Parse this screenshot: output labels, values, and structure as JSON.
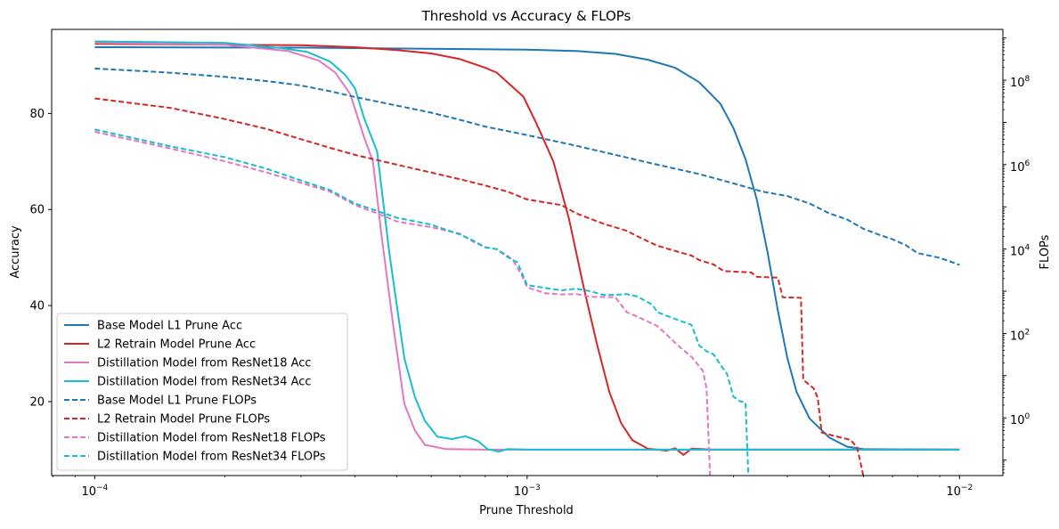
{
  "chart_data": {
    "type": "line",
    "title": "Threshold vs Accuracy & FLOPs",
    "xlabel": "Prune Threshold",
    "ylabel": "Accuracy",
    "y2label": "FLOPs",
    "xscale": "log",
    "xlim": [
      7.95e-05,
      0.0126
    ],
    "ylim": [
      4.6,
      97.5
    ],
    "y2scale": "log",
    "y2lim": [
      0.043,
      1600000000
    ],
    "x_ticks": [
      {
        "value": 0.0001,
        "base": "10",
        "exp": "−4"
      },
      {
        "value": 0.001,
        "base": "10",
        "exp": "−3"
      },
      {
        "value": 0.01,
        "base": "10",
        "exp": "−2"
      }
    ],
    "y_ticks": [
      20,
      40,
      60,
      80
    ],
    "y2_ticks": [
      {
        "value": 1,
        "base": "10",
        "exp": "0"
      },
      {
        "value": 100,
        "base": "10",
        "exp": "2"
      },
      {
        "value": 10000,
        "base": "10",
        "exp": "4"
      },
      {
        "value": 1000000,
        "base": "10",
        "exp": "6"
      },
      {
        "value": 100000000,
        "base": "10",
        "exp": "8"
      }
    ],
    "legend_position": "lower-left",
    "series": [
      {
        "name": "Base Model L1 Prune Acc",
        "axis": "left",
        "style": "solid",
        "color": "#1f77b4",
        "points": [
          [
            0.0001,
            93.8
          ],
          [
            0.0003,
            93.7
          ],
          [
            0.001,
            93.3
          ],
          [
            0.0013,
            93.0
          ],
          [
            0.0016,
            92.4
          ],
          [
            0.0019,
            91.2
          ],
          [
            0.0022,
            89.5
          ],
          [
            0.0025,
            86.5
          ],
          [
            0.0028,
            82.0
          ],
          [
            0.003,
            77.0
          ],
          [
            0.0032,
            70.5
          ],
          [
            0.0034,
            62.0
          ],
          [
            0.0036,
            51.0
          ],
          [
            0.0038,
            39.0
          ],
          [
            0.004,
            29.0
          ],
          [
            0.0042,
            22.0
          ],
          [
            0.0045,
            16.5
          ],
          [
            0.005,
            12.5
          ],
          [
            0.0055,
            10.6
          ],
          [
            0.006,
            10.1
          ],
          [
            0.01,
            10.0
          ]
        ]
      },
      {
        "name": "L2 Retrain Model Prune Acc",
        "axis": "left",
        "style": "solid",
        "color": "#d62728",
        "points": [
          [
            0.0001,
            94.5
          ],
          [
            0.0003,
            94.2
          ],
          [
            0.0004,
            93.8
          ],
          [
            0.0005,
            93.2
          ],
          [
            0.0006,
            92.5
          ],
          [
            0.0007,
            91.3
          ],
          [
            0.0008,
            89.5
          ],
          [
            0.00085,
            88.5
          ],
          [
            0.0009,
            86.5
          ],
          [
            0.00098,
            83.5
          ],
          [
            0.00105,
            78.0
          ],
          [
            0.00115,
            70.0
          ],
          [
            0.00125,
            58.0
          ],
          [
            0.00135,
            44.0
          ],
          [
            0.00145,
            32.0
          ],
          [
            0.00155,
            22.0
          ],
          [
            0.00165,
            15.5
          ],
          [
            0.00175,
            12.0
          ],
          [
            0.0019,
            10.2
          ],
          [
            0.0021,
            9.8
          ],
          [
            0.0022,
            10.3
          ],
          [
            0.0023,
            8.9
          ],
          [
            0.0024,
            10.2
          ],
          [
            0.0027,
            10.0
          ],
          [
            0.01,
            10.0
          ]
        ]
      },
      {
        "name": "Distillation Model from ResNet18 Acc",
        "axis": "left",
        "style": "solid",
        "color": "#e377c2",
        "points": [
          [
            0.0001,
            94.7
          ],
          [
            0.0002,
            94.3
          ],
          [
            0.00028,
            93.0
          ],
          [
            0.00033,
            91.0
          ],
          [
            0.00036,
            88.5
          ],
          [
            0.00039,
            84.0
          ],
          [
            0.00042,
            75.0
          ],
          [
            0.00044,
            70.0
          ],
          [
            0.00046,
            55.0
          ],
          [
            0.00049,
            36.0
          ],
          [
            0.00052,
            19.5
          ],
          [
            0.00055,
            14.0
          ],
          [
            0.00058,
            11.0
          ],
          [
            0.00065,
            10.1
          ],
          [
            0.0008,
            10.0
          ],
          [
            0.01,
            10.0
          ]
        ]
      },
      {
        "name": "Distillation Model from ResNet34 Acc",
        "axis": "left",
        "style": "solid",
        "color": "#17becf",
        "points": [
          [
            0.0001,
            95.0
          ],
          [
            0.0002,
            94.7
          ],
          [
            0.00027,
            93.6
          ],
          [
            0.00031,
            92.8
          ],
          [
            0.00035,
            90.8
          ],
          [
            0.00038,
            88.0
          ],
          [
            0.0004,
            85.2
          ],
          [
            0.00042,
            79.0
          ],
          [
            0.00045,
            72.0
          ],
          [
            0.00048,
            51.0
          ],
          [
            0.00052,
            29.0
          ],
          [
            0.00055,
            21.0
          ],
          [
            0.00058,
            16.0
          ],
          [
            0.00062,
            12.7
          ],
          [
            0.00067,
            12.2
          ],
          [
            0.00072,
            12.8
          ],
          [
            0.00077,
            11.8
          ],
          [
            0.00081,
            10.1
          ],
          [
            0.00086,
            9.6
          ],
          [
            0.0009,
            10.1
          ],
          [
            0.001,
            10.0
          ],
          [
            0.01,
            10.0
          ]
        ]
      },
      {
        "name": "Base Model L1 Prune FLOPs",
        "axis": "right",
        "style": "dashed",
        "color": "#1f77b4",
        "points": [
          [
            0.0001,
            190000000
          ],
          [
            0.00015,
            150000000
          ],
          [
            0.0002,
            120000000
          ],
          [
            0.00025,
            95000000
          ],
          [
            0.0003,
            75000000
          ],
          [
            0.00035,
            55000000
          ],
          [
            0.0004,
            40000000
          ],
          [
            0.0005,
            25000000
          ],
          [
            0.0006,
            17000000
          ],
          [
            0.0007,
            11500000
          ],
          [
            0.0008,
            8000000
          ],
          [
            0.001,
            5000000
          ],
          [
            0.0013,
            2800000
          ],
          [
            0.0016,
            1700000
          ],
          [
            0.002,
            1000000
          ],
          [
            0.0025,
            600000
          ],
          [
            0.003,
            360000
          ],
          [
            0.0035,
            230000
          ],
          [
            0.004,
            180000
          ],
          [
            0.0045,
            120000
          ],
          [
            0.005,
            70000
          ],
          [
            0.0055,
            50000
          ],
          [
            0.006,
            30000
          ],
          [
            0.0065,
            22000
          ],
          [
            0.007,
            17000
          ],
          [
            0.0075,
            12500
          ],
          [
            0.008,
            8000
          ],
          [
            0.009,
            6200
          ],
          [
            0.0095,
            5100
          ],
          [
            0.01,
            4200
          ]
        ]
      },
      {
        "name": "L2 Retrain Model Prune FLOPs",
        "axis": "right",
        "style": "dashed",
        "color": "#d62728",
        "points": [
          [
            0.0001,
            37000000
          ],
          [
            0.00015,
            22000000
          ],
          [
            0.0002,
            12000000
          ],
          [
            0.00025,
            7000000
          ],
          [
            0.0003,
            4000000
          ],
          [
            0.00035,
            2500000
          ],
          [
            0.0004,
            1700000
          ],
          [
            0.0005,
            1000000
          ],
          [
            0.0006,
            650000
          ],
          [
            0.0007,
            450000
          ],
          [
            0.0008,
            320000
          ],
          [
            0.0009,
            230000
          ],
          [
            0.001,
            150000
          ],
          [
            0.0012,
            110000
          ],
          [
            0.0013,
            70000
          ],
          [
            0.0015,
            40000
          ],
          [
            0.0017,
            27000
          ],
          [
            0.0018,
            20000
          ],
          [
            0.002,
            12000
          ],
          [
            0.0022,
            9000
          ],
          [
            0.0024,
            7000
          ],
          [
            0.0025,
            5500
          ],
          [
            0.0027,
            4300
          ],
          [
            0.00285,
            3000
          ],
          [
            0.0033,
            2800
          ],
          [
            0.0034,
            2200
          ],
          [
            0.0038,
            2100
          ],
          [
            0.0039,
            720
          ],
          [
            0.0043,
            700
          ],
          [
            0.00435,
            8
          ],
          [
            0.0046,
            5
          ],
          [
            0.0047,
            3
          ],
          [
            0.0048,
            0.45
          ],
          [
            0.0051,
            0.38
          ],
          [
            0.0056,
            0.3
          ],
          [
            0.0058,
            0.2
          ],
          [
            0.006,
            0.04
          ]
        ]
      },
      {
        "name": "Distillation Model from ResNet18 FLOPs",
        "axis": "right",
        "style": "dashed",
        "color": "#e377c2",
        "points": [
          [
            0.0001,
            6000000
          ],
          [
            0.00015,
            2400000
          ],
          [
            0.0002,
            1200000
          ],
          [
            0.00025,
            650000
          ],
          [
            0.0003,
            370000
          ],
          [
            0.00035,
            230000
          ],
          [
            0.0004,
            110000
          ],
          [
            0.00045,
            70000
          ],
          [
            0.0005,
            45000
          ],
          [
            0.0006,
            33000
          ],
          [
            0.0007,
            23000
          ],
          [
            0.00075,
            15000
          ],
          [
            0.0008,
            11000
          ],
          [
            0.00085,
            10000
          ],
          [
            0.0009,
            7000
          ],
          [
            0.00093,
            5200
          ],
          [
            0.00097,
            2500
          ],
          [
            0.001,
            1250
          ],
          [
            0.0011,
            900
          ],
          [
            0.0012,
            840
          ],
          [
            0.0013,
            860
          ],
          [
            0.0014,
            740
          ],
          [
            0.0016,
            720
          ],
          [
            0.0017,
            320
          ],
          [
            0.0018,
            250
          ],
          [
            0.002,
            150
          ],
          [
            0.0021,
            95
          ],
          [
            0.0022,
            60
          ],
          [
            0.0023,
            40
          ],
          [
            0.0024,
            28
          ],
          [
            0.00255,
            13
          ],
          [
            0.0026,
            5
          ],
          [
            0.00265,
            0.04
          ]
        ]
      },
      {
        "name": "Distillation Model from ResNet34 FLOPs",
        "axis": "right",
        "style": "dashed",
        "color": "#17becf",
        "points": [
          [
            0.0001,
            6800000
          ],
          [
            0.00015,
            2700000
          ],
          [
            0.0002,
            1500000
          ],
          [
            0.00025,
            800000
          ],
          [
            0.0003,
            420000
          ],
          [
            0.00035,
            250000
          ],
          [
            0.0004,
            120000
          ],
          [
            0.00045,
            80000
          ],
          [
            0.0005,
            55000
          ],
          [
            0.0006,
            38000
          ],
          [
            0.0007,
            22000
          ],
          [
            0.00075,
            16000
          ],
          [
            0.0008,
            11000
          ],
          [
            0.00085,
            10000
          ],
          [
            0.0009,
            6500
          ],
          [
            0.00095,
            4800
          ],
          [
            0.001,
            1400
          ],
          [
            0.0011,
            1200
          ],
          [
            0.0012,
            1050
          ],
          [
            0.0013,
            1150
          ],
          [
            0.0014,
            1000
          ],
          [
            0.0015,
            820
          ],
          [
            0.0016,
            820
          ],
          [
            0.0017,
            860
          ],
          [
            0.0018,
            750
          ],
          [
            0.00195,
            480
          ],
          [
            0.002,
            320
          ],
          [
            0.0022,
            220
          ],
          [
            0.0024,
            160
          ],
          [
            0.0025,
            52
          ],
          [
            0.0026,
            38
          ],
          [
            0.0027,
            32
          ],
          [
            0.0028,
            18
          ],
          [
            0.0029,
            11
          ],
          [
            0.003,
            3.2
          ],
          [
            0.0031,
            2.5
          ],
          [
            0.0032,
            2.3
          ],
          [
            0.00325,
            0.04
          ]
        ]
      }
    ]
  }
}
